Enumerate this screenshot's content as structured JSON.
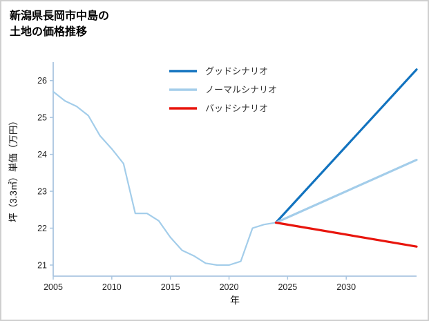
{
  "title": {
    "line1": "新潟県長岡市中島の",
    "line2": "土地の価格推移"
  },
  "chart_data": {
    "type": "line",
    "title": "新潟県長岡市中島の土地の価格推移",
    "xlabel": "年",
    "ylabel": "坪（3.3㎡）単価（万円）",
    "xlim": [
      2005,
      2036
    ],
    "ylim": [
      20.7,
      26.5
    ],
    "x_ticks": [
      2005,
      2010,
      2015,
      2020,
      2025,
      2030
    ],
    "y_ticks": [
      21,
      22,
      23,
      24,
      25,
      26
    ],
    "grid": false,
    "legend_position": "upper-center-inside",
    "colors": {
      "axis": "#a9c5e0",
      "tick_label": "#222222",
      "legend_label": "#333333",
      "history": "#a3cdea",
      "good": "#1273bf",
      "normal": "#a3cdea",
      "bad": "#e8150d"
    },
    "series": [
      {
        "id": "history",
        "label": "",
        "in_legend": false,
        "color_key": "history",
        "width": 2.2,
        "x": [
          2005,
          2006,
          2007,
          2008,
          2009,
          2010,
          2011,
          2012,
          2013,
          2014,
          2015,
          2016,
          2017,
          2018,
          2019,
          2020,
          2021,
          2022,
          2023,
          2024
        ],
        "values": [
          25.7,
          25.45,
          25.3,
          25.05,
          24.5,
          24.15,
          23.75,
          22.4,
          22.4,
          22.2,
          21.75,
          21.4,
          21.25,
          21.05,
          21.0,
          21.0,
          21.1,
          22.0,
          22.1,
          22.15
        ]
      },
      {
        "id": "good",
        "label": "グッドシナリオ",
        "in_legend": true,
        "color_key": "good",
        "width": 3.2,
        "x": [
          2024,
          2036
        ],
        "values": [
          22.15,
          26.3
        ]
      },
      {
        "id": "normal",
        "label": "ノーマルシナリオ",
        "in_legend": true,
        "color_key": "normal",
        "width": 3.2,
        "x": [
          2024,
          2036
        ],
        "values": [
          22.15,
          23.85
        ]
      },
      {
        "id": "bad",
        "label": "バッドシナリオ",
        "in_legend": true,
        "color_key": "bad",
        "width": 3.2,
        "x": [
          2024,
          2036
        ],
        "values": [
          22.15,
          21.5
        ]
      }
    ]
  }
}
